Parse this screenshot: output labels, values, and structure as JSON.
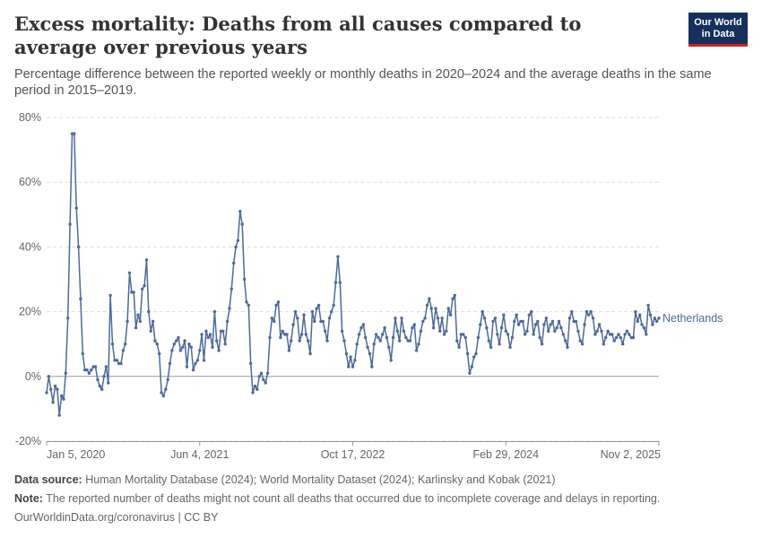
{
  "header": {
    "title": "Excess mortality: Deaths from all causes compared to average over previous years",
    "subtitle": "Percentage difference between the reported weekly or monthly deaths in 2020–2024 and the average deaths in the same period in 2015–2019.",
    "logo_line1": "Our World",
    "logo_line2": "in Data",
    "logo_color": "#16305c",
    "logo_accent": "#ce261e"
  },
  "chart_data": {
    "type": "line",
    "ylim": [
      -20,
      80
    ],
    "y_ticks": [
      -20,
      0,
      20,
      40,
      60,
      80
    ],
    "y_tick_labels": [
      "-20%",
      "0%",
      "20%",
      "40%",
      "60%",
      "80%"
    ],
    "x_tick_labels": [
      "Jan 5, 2020",
      "Jun 4, 2021",
      "Oct 17, 2022",
      "Feb 29, 2024",
      "Nov 2, 2025"
    ],
    "x_start": "2020-01-05",
    "x_end": "2025-11-02",
    "grid": true,
    "legend": "inline-right",
    "series": [
      {
        "name": "Netherlands",
        "color": "#4c6a9c",
        "values": [
          -5,
          0,
          -4,
          -8,
          -3,
          -4,
          -12,
          -6,
          -7,
          1,
          18,
          47,
          75,
          75,
          52,
          40,
          24,
          7,
          2,
          2,
          1,
          2,
          3,
          3,
          -1,
          -3,
          -4,
          0,
          3,
          -2,
          25,
          10,
          5,
          5,
          4,
          4,
          8,
          10,
          17,
          32,
          26,
          26,
          15,
          19,
          17,
          27,
          28,
          36,
          20,
          14,
          17,
          11,
          10,
          7,
          -5,
          -6,
          -4,
          -1,
          4,
          8,
          10,
          11,
          12,
          8,
          9,
          11,
          3,
          10,
          9,
          2,
          4,
          5,
          8,
          13,
          5,
          14,
          12,
          13,
          9,
          20,
          11,
          8,
          14,
          14,
          10,
          17,
          21,
          27,
          35,
          40,
          42,
          51,
          47,
          30,
          23,
          22,
          4,
          -5,
          -3,
          -4,
          0,
          1,
          -1,
          -2,
          1,
          12,
          18,
          17,
          22,
          23,
          12,
          14,
          13,
          13,
          8,
          11,
          16,
          20,
          18,
          11,
          13,
          19,
          13,
          11,
          7,
          20,
          17,
          21,
          22,
          17,
          17,
          14,
          11,
          18,
          20,
          22,
          29,
          37,
          29,
          14,
          11,
          7,
          3,
          6,
          3,
          5,
          10,
          13,
          15,
          16,
          12,
          9,
          7,
          3,
          10,
          13,
          12,
          11,
          13,
          15,
          12,
          9,
          5,
          12,
          18,
          14,
          11,
          18,
          14,
          12,
          11,
          11,
          15,
          16,
          8,
          10,
          14,
          17,
          18,
          22,
          24,
          21,
          15,
          21,
          18,
          14,
          18,
          13,
          14,
          21,
          19,
          24,
          25,
          11,
          9,
          13,
          13,
          12,
          7,
          1,
          3,
          6,
          7,
          12,
          16,
          20,
          18,
          15,
          11,
          9,
          17,
          18,
          13,
          10,
          15,
          19,
          14,
          13,
          9,
          12,
          17,
          19,
          16,
          17,
          17,
          13,
          14,
          19,
          20,
          13,
          16,
          17,
          12,
          10,
          16,
          18,
          14,
          16,
          17,
          14,
          15,
          17,
          15,
          13,
          11,
          9,
          18,
          20,
          17,
          17,
          14,
          11,
          10,
          16,
          20,
          19,
          20,
          18,
          13,
          14,
          16,
          14,
          10,
          12,
          14,
          13,
          13,
          11,
          12,
          13,
          12,
          10,
          13,
          14,
          13,
          12,
          12,
          20,
          17,
          19,
          16,
          15,
          13,
          22,
          19,
          16,
          18,
          17,
          18
        ]
      }
    ]
  },
  "footer": {
    "source_label": "Data source:",
    "source_text": "Human Mortality Database (2024); World Mortality Dataset (2024); Karlinsky and Kobak (2021)",
    "note_label": "Note:",
    "note_text": "The reported number of deaths might not count all deaths that occurred due to incomplete coverage and delays in reporting.",
    "credit": "OurWorldinData.org/coronavirus | CC BY"
  }
}
